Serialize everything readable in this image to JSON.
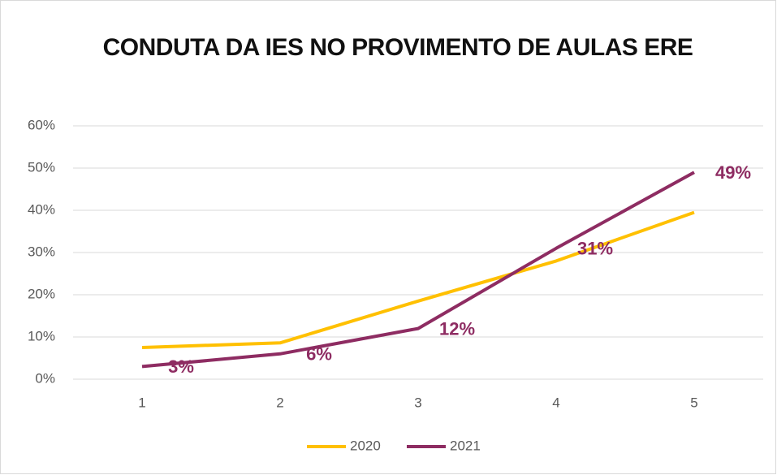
{
  "chart_data": {
    "type": "line",
    "title": "CONDUTA DA IES NO PROVIMENTO DE AULAS ERE",
    "categories": [
      "1",
      "2",
      "3",
      "4",
      "5"
    ],
    "series": [
      {
        "name": "2020",
        "color": "#ffc000",
        "values": [
          7.5,
          8.6,
          18.5,
          28,
          39.5
        ]
      },
      {
        "name": "2021",
        "color": "#8e2c62",
        "values": [
          3,
          6,
          12,
          31,
          49
        ],
        "value_labels": [
          "3%",
          "6%",
          "12%",
          "31%",
          "49%"
        ]
      }
    ],
    "ylim": [
      0,
      60
    ],
    "yticks": [
      {
        "value": 0,
        "label": "0%"
      },
      {
        "value": 10,
        "label": "10%"
      },
      {
        "value": 20,
        "label": "20%"
      },
      {
        "value": 30,
        "label": "30%"
      },
      {
        "value": 40,
        "label": "40%"
      },
      {
        "value": 50,
        "label": "50%"
      },
      {
        "value": 60,
        "label": "60%"
      }
    ],
    "grid": true,
    "legend": "bottom"
  }
}
